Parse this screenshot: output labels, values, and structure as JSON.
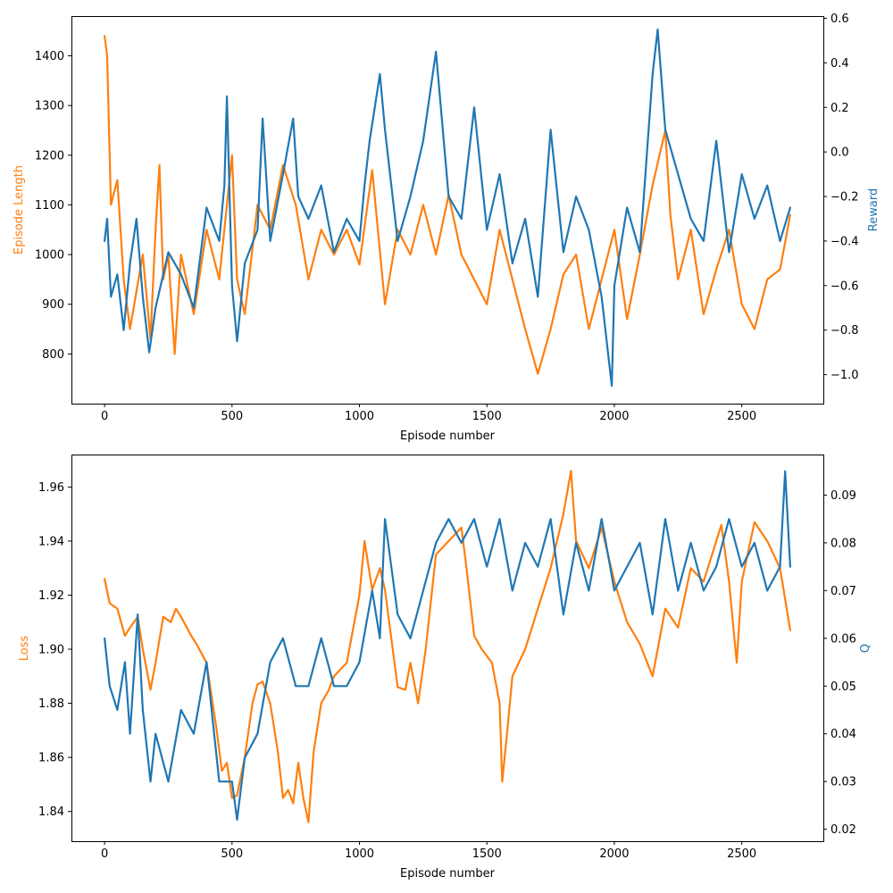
{
  "colors": {
    "orange": "#ff7f0e",
    "blue": "#1f77b4"
  },
  "chart_data": [
    {
      "type": "line",
      "xlabel": "Episode number",
      "ylabel_left": "Episode Length",
      "ylabel_right": "Reward",
      "xlim": [
        -130,
        2820
      ],
      "ylim_left": [
        700,
        1480
      ],
      "ylim_right": [
        -1.13,
        0.61
      ],
      "xticks": [
        0,
        500,
        1000,
        1500,
        2000,
        2500
      ],
      "yticks_left": [
        800,
        900,
        1000,
        1100,
        1200,
        1300,
        1400
      ],
      "yticks_right": [
        -1.0,
        -0.8,
        -0.6,
        -0.4,
        -0.2,
        0.0,
        0.2,
        0.4,
        0.6
      ],
      "ytick_labels_right": [
        "−1.0",
        "−0.8",
        "−0.6",
        "−0.4",
        "−0.2",
        "0.0",
        "0.2",
        "0.4",
        "0.6"
      ],
      "grid": false,
      "series": [
        {
          "axis": "left",
          "color": "#ff7f0e",
          "x": [
            0,
            10,
            25,
            50,
            75,
            100,
            150,
            180,
            200,
            215,
            230,
            250,
            275,
            300,
            350,
            400,
            450,
            500,
            520,
            550,
            600,
            650,
            700,
            750,
            800,
            850,
            900,
            950,
            1000,
            1050,
            1100,
            1150,
            1200,
            1250,
            1300,
            1350,
            1400,
            1450,
            1500,
            1550,
            1600,
            1650,
            1700,
            1750,
            1800,
            1850,
            1900,
            1950,
            2000,
            2050,
            2100,
            2150,
            2200,
            2220,
            2250,
            2300,
            2350,
            2400,
            2450,
            2500,
            2550,
            2600,
            2650,
            2690
          ],
          "y": [
            1440,
            1400,
            1100,
            1150,
            950,
            850,
            1000,
            830,
            1050,
            1180,
            950,
            1000,
            800,
            1000,
            880,
            1050,
            950,
            1200,
            950,
            880,
            1100,
            1050,
            1180,
            1100,
            950,
            1050,
            1000,
            1050,
            980,
            1170,
            900,
            1050,
            1000,
            1100,
            1000,
            1120,
            1000,
            950,
            900,
            1050,
            950,
            850,
            760,
            850,
            960,
            1000,
            850,
            950,
            1050,
            870,
            1000,
            1140,
            1250,
            1080,
            950,
            1050,
            880,
            970,
            1050,
            900,
            850,
            950,
            970,
            1080
          ]
        },
        {
          "axis": "right",
          "color": "#1f77b4",
          "x": [
            0,
            10,
            25,
            50,
            75,
            100,
            125,
            150,
            175,
            200,
            250,
            300,
            350,
            400,
            450,
            470,
            480,
            500,
            520,
            550,
            600,
            620,
            650,
            700,
            740,
            760,
            800,
            850,
            900,
            950,
            1000,
            1020,
            1040,
            1060,
            1080,
            1100,
            1150,
            1200,
            1250,
            1300,
            1350,
            1400,
            1450,
            1500,
            1550,
            1600,
            1650,
            1700,
            1750,
            1800,
            1850,
            1900,
            1950,
            1970,
            1990,
            2000,
            2050,
            2100,
            2150,
            2170,
            2200,
            2250,
            2300,
            2350,
            2400,
            2450,
            2500,
            2550,
            2600,
            2650,
            2690
          ],
          "y": [
            -0.4,
            -0.3,
            -0.65,
            -0.55,
            -0.8,
            -0.5,
            -0.3,
            -0.65,
            -0.9,
            -0.7,
            -0.45,
            -0.55,
            -0.7,
            -0.25,
            -0.4,
            -0.15,
            0.25,
            -0.6,
            -0.85,
            -0.5,
            -0.35,
            0.15,
            -0.4,
            -0.1,
            0.15,
            -0.2,
            -0.3,
            -0.15,
            -0.45,
            -0.3,
            -0.4,
            -0.15,
            0.05,
            0.2,
            0.35,
            0.1,
            -0.4,
            -0.2,
            0.05,
            0.45,
            -0.2,
            -0.3,
            0.2,
            -0.35,
            -0.1,
            -0.5,
            -0.3,
            -0.65,
            0.1,
            -0.45,
            -0.2,
            -0.35,
            -0.65,
            -0.85,
            -1.05,
            -0.6,
            -0.25,
            -0.45,
            0.35,
            0.55,
            0.1,
            -0.1,
            -0.3,
            -0.4,
            0.05,
            -0.45,
            -0.1,
            -0.3,
            -0.15,
            -0.4,
            -0.25
          ]
        }
      ]
    },
    {
      "type": "line",
      "xlabel": "Episode number",
      "ylabel_left": "Loss",
      "ylabel_right": "Q",
      "xlim": [
        -130,
        2820
      ],
      "ylim_left": [
        1.829,
        1.972
      ],
      "ylim_right": [
        0.0175,
        0.0985
      ],
      "xticks": [
        0,
        500,
        1000,
        1500,
        2000,
        2500
      ],
      "yticks_left": [
        1.84,
        1.86,
        1.88,
        1.9,
        1.92,
        1.94,
        1.96
      ],
      "yticks_right": [
        0.02,
        0.03,
        0.04,
        0.05,
        0.06,
        0.07,
        0.08,
        0.09
      ],
      "grid": false,
      "series": [
        {
          "axis": "left",
          "color": "#ff7f0e",
          "x": [
            0,
            20,
            50,
            80,
            100,
            130,
            150,
            180,
            200,
            230,
            260,
            280,
            300,
            340,
            360,
            400,
            440,
            460,
            480,
            500,
            520,
            550,
            580,
            600,
            620,
            650,
            680,
            700,
            720,
            740,
            760,
            780,
            800,
            820,
            850,
            880,
            900,
            950,
            1000,
            1020,
            1050,
            1080,
            1100,
            1150,
            1180,
            1200,
            1230,
            1260,
            1300,
            1350,
            1400,
            1420,
            1450,
            1480,
            1520,
            1550,
            1560,
            1580,
            1600,
            1650,
            1700,
            1750,
            1800,
            1830,
            1850,
            1900,
            1950,
            2000,
            2050,
            2100,
            2150,
            2200,
            2250,
            2300,
            2350,
            2400,
            2420,
            2450,
            2480,
            2500,
            2550,
            2600,
            2650,
            2690
          ],
          "y": [
            1.926,
            1.917,
            1.915,
            1.905,
            1.908,
            1.912,
            1.9,
            1.885,
            1.895,
            1.912,
            1.91,
            1.915,
            1.912,
            1.905,
            1.902,
            1.895,
            1.87,
            1.855,
            1.858,
            1.845,
            1.846,
            1.86,
            1.88,
            1.887,
            1.888,
            1.88,
            1.862,
            1.845,
            1.848,
            1.843,
            1.858,
            1.845,
            1.836,
            1.862,
            1.88,
            1.885,
            1.89,
            1.895,
            1.92,
            1.94,
            1.922,
            1.93,
            1.922,
            1.886,
            1.885,
            1.895,
            1.88,
            1.9,
            1.935,
            1.94,
            1.945,
            1.93,
            1.905,
            1.9,
            1.895,
            1.88,
            1.851,
            1.87,
            1.89,
            1.9,
            1.915,
            1.93,
            1.95,
            1.966,
            1.94,
            1.93,
            1.945,
            1.925,
            1.91,
            1.902,
            1.89,
            1.915,
            1.908,
            1.93,
            1.925,
            1.94,
            1.946,
            1.925,
            1.895,
            1.925,
            1.947,
            1.94,
            1.93,
            1.907
          ]
        },
        {
          "axis": "right",
          "color": "#1f77b4",
          "x": [
            0,
            20,
            50,
            80,
            100,
            130,
            150,
            180,
            200,
            250,
            300,
            350,
            400,
            450,
            500,
            520,
            550,
            600,
            650,
            700,
            750,
            800,
            850,
            900,
            950,
            1000,
            1050,
            1080,
            1100,
            1150,
            1200,
            1250,
            1300,
            1350,
            1400,
            1450,
            1500,
            1550,
            1600,
            1650,
            1700,
            1750,
            1800,
            1850,
            1900,
            1950,
            2000,
            2050,
            2100,
            2150,
            2200,
            2250,
            2300,
            2350,
            2400,
            2450,
            2500,
            2550,
            2600,
            2650,
            2670,
            2690
          ],
          "y": [
            0.06,
            0.05,
            0.045,
            0.055,
            0.04,
            0.065,
            0.045,
            0.03,
            0.04,
            0.03,
            0.045,
            0.04,
            0.055,
            0.03,
            0.03,
            0.022,
            0.035,
            0.04,
            0.055,
            0.06,
            0.05,
            0.05,
            0.06,
            0.05,
            0.05,
            0.055,
            0.07,
            0.06,
            0.085,
            0.065,
            0.06,
            0.07,
            0.08,
            0.085,
            0.08,
            0.085,
            0.075,
            0.085,
            0.07,
            0.08,
            0.075,
            0.085,
            0.065,
            0.08,
            0.07,
            0.085,
            0.07,
            0.075,
            0.08,
            0.065,
            0.085,
            0.07,
            0.08,
            0.07,
            0.075,
            0.085,
            0.075,
            0.08,
            0.07,
            0.075,
            0.095,
            0.075
          ]
        }
      ]
    }
  ]
}
